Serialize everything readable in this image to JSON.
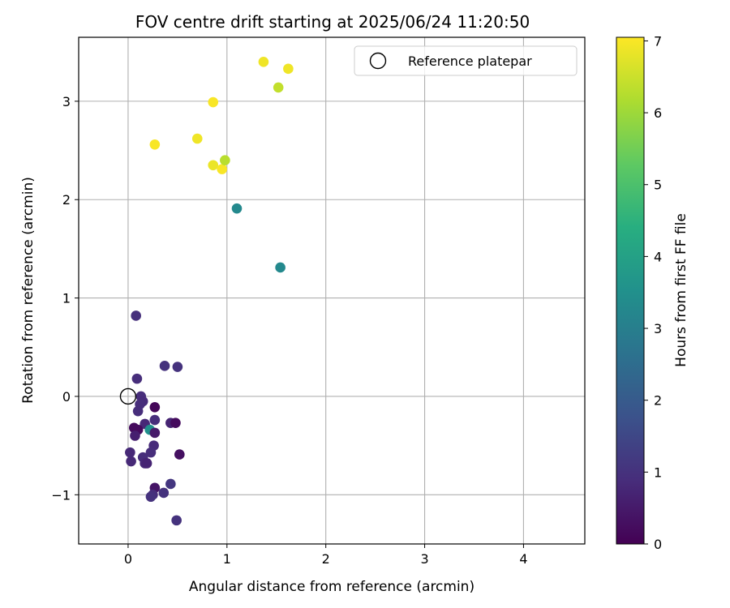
{
  "chart_data": {
    "type": "scatter",
    "title": "FOV centre drift starting at 2025/06/24 11:20:50",
    "xlabel": "Angular distance from reference (arcmin)",
    "ylabel": "Rotation from reference (arcmin)",
    "xlim": [
      -0.5,
      4.62
    ],
    "ylim": [
      -1.5,
      3.65
    ],
    "x_ticks": [
      0,
      1,
      2,
      3,
      4
    ],
    "y_ticks": [
      -1,
      0,
      1,
      2,
      3
    ],
    "x_tick_labels": [
      "0",
      "1",
      "2",
      "3",
      "4"
    ],
    "y_tick_labels": [
      "−1",
      "0",
      "1",
      "2",
      "3"
    ],
    "grid": true,
    "legend": {
      "position": "top-right",
      "entries": [
        {
          "label": "Reference platepar",
          "marker": "open-circle",
          "color": "#000000"
        }
      ]
    },
    "reference_point": {
      "x": 0,
      "y": 0
    },
    "colorbar": {
      "label": "Hours from first FF file",
      "min": 0,
      "max": 7.05,
      "ticks": [
        0,
        1,
        2,
        3,
        4,
        5,
        6,
        7
      ],
      "tick_labels": [
        "0",
        "1",
        "2",
        "3",
        "4",
        "5",
        "6",
        "7"
      ],
      "colormap": "viridis"
    },
    "points": [
      {
        "x": 0.08,
        "y": 0.82,
        "h": 0.95
      },
      {
        "x": 0.09,
        "y": 0.18,
        "h": 0.9
      },
      {
        "x": 0.37,
        "y": 0.31,
        "h": 1.0
      },
      {
        "x": 0.5,
        "y": 0.3,
        "h": 1.0
      },
      {
        "x": 0.13,
        "y": 0.0,
        "h": 0.9
      },
      {
        "x": 0.15,
        "y": -0.05,
        "h": 0.85
      },
      {
        "x": 0.12,
        "y": -0.08,
        "h": 0.9
      },
      {
        "x": 0.27,
        "y": -0.11,
        "h": 0.1
      },
      {
        "x": 0.1,
        "y": -0.15,
        "h": 0.9
      },
      {
        "x": 0.27,
        "y": -0.24,
        "h": 0.9
      },
      {
        "x": 0.43,
        "y": -0.27,
        "h": 0.7
      },
      {
        "x": 0.48,
        "y": -0.27,
        "h": 0.2
      },
      {
        "x": 0.17,
        "y": -0.28,
        "h": 0.8
      },
      {
        "x": 0.06,
        "y": -0.32,
        "h": 0.2
      },
      {
        "x": 0.1,
        "y": -0.34,
        "h": 0.2
      },
      {
        "x": 0.22,
        "y": -0.34,
        "h": 3.5
      },
      {
        "x": 0.27,
        "y": -0.37,
        "h": 0.5
      },
      {
        "x": 0.07,
        "y": -0.4,
        "h": 0.6
      },
      {
        "x": 0.26,
        "y": -0.5,
        "h": 0.85
      },
      {
        "x": 0.02,
        "y": -0.57,
        "h": 0.8
      },
      {
        "x": 0.23,
        "y": -0.57,
        "h": 0.9
      },
      {
        "x": 0.52,
        "y": -0.59,
        "h": 0.3
      },
      {
        "x": 0.15,
        "y": -0.62,
        "h": 0.9
      },
      {
        "x": 0.03,
        "y": -0.66,
        "h": 0.8
      },
      {
        "x": 0.17,
        "y": -0.68,
        "h": 0.8
      },
      {
        "x": 0.19,
        "y": -0.68,
        "h": 0.7
      },
      {
        "x": 0.43,
        "y": -0.89,
        "h": 1.1
      },
      {
        "x": 0.27,
        "y": -0.93,
        "h": 0.4
      },
      {
        "x": 0.36,
        "y": -0.98,
        "h": 1.0
      },
      {
        "x": 0.25,
        "y": -1.0,
        "h": 0.9
      },
      {
        "x": 0.23,
        "y": -1.02,
        "h": 1.0
      },
      {
        "x": 0.49,
        "y": -1.26,
        "h": 1.0
      },
      {
        "x": 1.1,
        "y": 1.91,
        "h": 3.3
      },
      {
        "x": 1.54,
        "y": 1.31,
        "h": 3.3
      },
      {
        "x": 0.27,
        "y": 2.56,
        "h": 7.0
      },
      {
        "x": 0.7,
        "y": 2.62,
        "h": 6.9
      },
      {
        "x": 0.86,
        "y": 2.35,
        "h": 6.85
      },
      {
        "x": 0.95,
        "y": 2.31,
        "h": 7.0
      },
      {
        "x": 0.98,
        "y": 2.4,
        "h": 6.3
      },
      {
        "x": 0.86,
        "y": 2.99,
        "h": 7.0
      },
      {
        "x": 1.37,
        "y": 3.4,
        "h": 6.9
      },
      {
        "x": 1.52,
        "y": 3.14,
        "h": 6.4
      },
      {
        "x": 1.62,
        "y": 3.33,
        "h": 6.9
      }
    ]
  }
}
